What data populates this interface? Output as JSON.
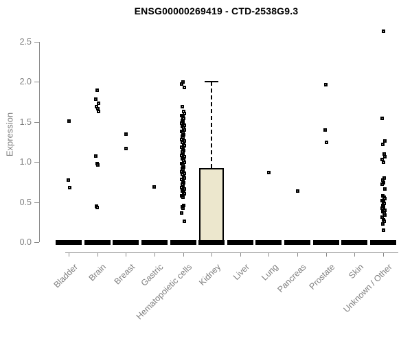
{
  "chart_data": {
    "type": "boxplot",
    "overlay": "jittered-points",
    "title": "ENSG00000269419 - CTD-2538G9.3",
    "xlabel": "",
    "ylabel": "Expression",
    "ylim": [
      0,
      2.5
    ],
    "yticks": [
      "0.0",
      "0.5",
      "1.0",
      "1.5",
      "2.0",
      "2.5"
    ],
    "ytick_values": [
      0,
      0.5,
      1.0,
      1.5,
      2.0,
      2.5
    ],
    "grid": "off",
    "legend": "none",
    "colors": {
      "box_fill": "#ece7cd",
      "box_border": "#000000",
      "point": "#000000",
      "axis": "#8a8a8a",
      "tick_text": "#7f7f7f",
      "title_text": "#000000",
      "flat_box": "#000000"
    },
    "categories": [
      "Bladder",
      "Brain",
      "Breast",
      "Gastric",
      "Hematopoietic cells",
      "Kidney",
      "Liver",
      "Lung",
      "Pancreas",
      "Prostate",
      "Skin",
      "Unknown / Other"
    ],
    "series": [
      {
        "name": "Bladder",
        "box": {
          "low": 0,
          "q1": 0,
          "median": 0,
          "q3": 0,
          "high": 0
        },
        "points": [
          1.51,
          0.77,
          0.68
        ]
      },
      {
        "name": "Brain",
        "box": {
          "low": 0,
          "q1": 0,
          "median": 0,
          "q3": 0,
          "high": 0
        },
        "points": [
          1.89,
          1.78,
          1.73,
          1.69,
          1.66,
          1.63,
          1.07,
          0.98,
          0.96,
          0.45,
          0.43
        ]
      },
      {
        "name": "Breast",
        "box": {
          "low": 0,
          "q1": 0,
          "median": 0,
          "q3": 0,
          "high": 0
        },
        "points": [
          1.35,
          1.17
        ]
      },
      {
        "name": "Gastric",
        "box": {
          "low": 0,
          "q1": 0,
          "median": 0,
          "q3": 0,
          "high": 0
        },
        "points": [
          0.69
        ]
      },
      {
        "name": "Hematopoietic cells",
        "box": {
          "low": 0,
          "q1": 0,
          "median": 0,
          "q3": 0,
          "high": 0
        },
        "points": [
          2.0,
          1.97,
          1.93,
          1.69,
          1.63,
          1.6,
          1.58,
          1.56,
          1.54,
          1.52,
          1.5,
          1.48,
          1.46,
          1.44,
          1.42,
          1.4,
          1.38,
          1.36,
          1.34,
          1.32,
          1.3,
          1.28,
          1.26,
          1.24,
          1.22,
          1.2,
          1.18,
          1.16,
          1.14,
          1.12,
          1.1,
          1.08,
          1.06,
          1.04,
          1.02,
          1.0,
          0.98,
          0.96,
          0.94,
          0.92,
          0.9,
          0.88,
          0.86,
          0.84,
          0.82,
          0.8,
          0.78,
          0.76,
          0.74,
          0.72,
          0.7,
          0.68,
          0.66,
          0.64,
          0.62,
          0.6,
          0.58,
          0.56,
          0.46,
          0.44,
          0.42,
          0.36,
          0.26
        ]
      },
      {
        "name": "Kidney",
        "box": {
          "low": 0,
          "q1": 0,
          "median": 0,
          "q3": 0.92,
          "high": 2.0
        },
        "points": []
      },
      {
        "name": "Liver",
        "box": {
          "low": 0,
          "q1": 0,
          "median": 0,
          "q3": 0,
          "high": 0
        },
        "points": []
      },
      {
        "name": "Lung",
        "box": {
          "low": 0,
          "q1": 0,
          "median": 0,
          "q3": 0,
          "high": 0
        },
        "points": [
          0.87
        ]
      },
      {
        "name": "Pancreas",
        "box": {
          "low": 0,
          "q1": 0,
          "median": 0,
          "q3": 0,
          "high": 0
        },
        "points": [
          0.64
        ]
      },
      {
        "name": "Prostate",
        "box": {
          "low": 0,
          "q1": 0,
          "median": 0,
          "q3": 0,
          "high": 0
        },
        "points": [
          1.96,
          1.4,
          1.24
        ]
      },
      {
        "name": "Skin",
        "box": {
          "low": 0,
          "q1": 0,
          "median": 0,
          "q3": 0,
          "high": 0
        },
        "points": []
      },
      {
        "name": "Unknown / Other",
        "box": {
          "low": 0,
          "q1": 0,
          "median": 0,
          "q3": 0,
          "high": 0
        },
        "points": [
          2.63,
          1.54,
          1.26,
          1.22,
          1.1,
          1.06,
          1.03,
          1.0,
          0.8,
          0.77,
          0.74,
          0.72,
          0.66,
          0.58,
          0.56,
          0.54,
          0.52,
          0.5,
          0.48,
          0.46,
          0.44,
          0.42,
          0.4,
          0.38,
          0.36,
          0.34,
          0.31,
          0.28,
          0.26,
          0.23,
          0.15
        ]
      }
    ]
  }
}
